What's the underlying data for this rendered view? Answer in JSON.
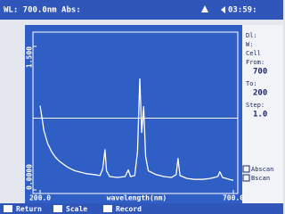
{
  "status_bar": {
    "left": "WL: 700.0nm Abs:",
    "time": "03:59:"
  },
  "side_panel": {
    "items": [
      "Dl:",
      "W:",
      "Cell",
      "From:",
      "700",
      "To:",
      "200",
      "Step:",
      "1.0"
    ],
    "options": [
      "Abscan",
      "Bscan"
    ]
  },
  "buttons": [
    "Return",
    "Scale",
    "Record"
  ],
  "chart_data": {
    "type": "line",
    "x_label": "wavelength(nm)",
    "x": [
      200,
      205,
      210,
      220,
      230,
      240,
      250,
      260,
      270,
      280,
      290,
      300,
      320,
      340,
      355,
      362,
      368,
      372,
      380,
      400,
      420,
      428,
      434,
      445,
      452,
      458,
      463,
      468,
      473,
      480,
      500,
      520,
      540,
      552,
      557,
      562,
      580,
      600,
      620,
      640,
      660,
      665,
      672,
      690,
      700
    ],
    "series": [
      {
        "color": "#ffffff",
        "values": [
          0.88,
          0.75,
          0.62,
          0.48,
          0.4,
          0.34,
          0.3,
          0.27,
          0.24,
          0.22,
          0.2,
          0.19,
          0.17,
          0.16,
          0.15,
          0.22,
          0.42,
          0.2,
          0.14,
          0.13,
          0.14,
          0.21,
          0.14,
          0.15,
          0.4,
          1.16,
          0.6,
          0.87,
          0.35,
          0.2,
          0.16,
          0.14,
          0.13,
          0.16,
          0.33,
          0.15,
          0.12,
          0.11,
          0.11,
          0.12,
          0.14,
          0.19,
          0.13,
          0.11,
          0.1
        ]
      }
    ],
    "cursor_y": 0.75,
    "xlim": [
      200,
      700
    ],
    "xticks": [
      {
        "value": 200,
        "label": "200.0"
      },
      {
        "value": 700,
        "label": "700.0"
      }
    ],
    "ylim": [
      0,
      1.5
    ],
    "yticks": [
      {
        "value": 0,
        "label": "0.0000"
      },
      {
        "value": 1.5,
        "label": "1.500"
      }
    ]
  }
}
